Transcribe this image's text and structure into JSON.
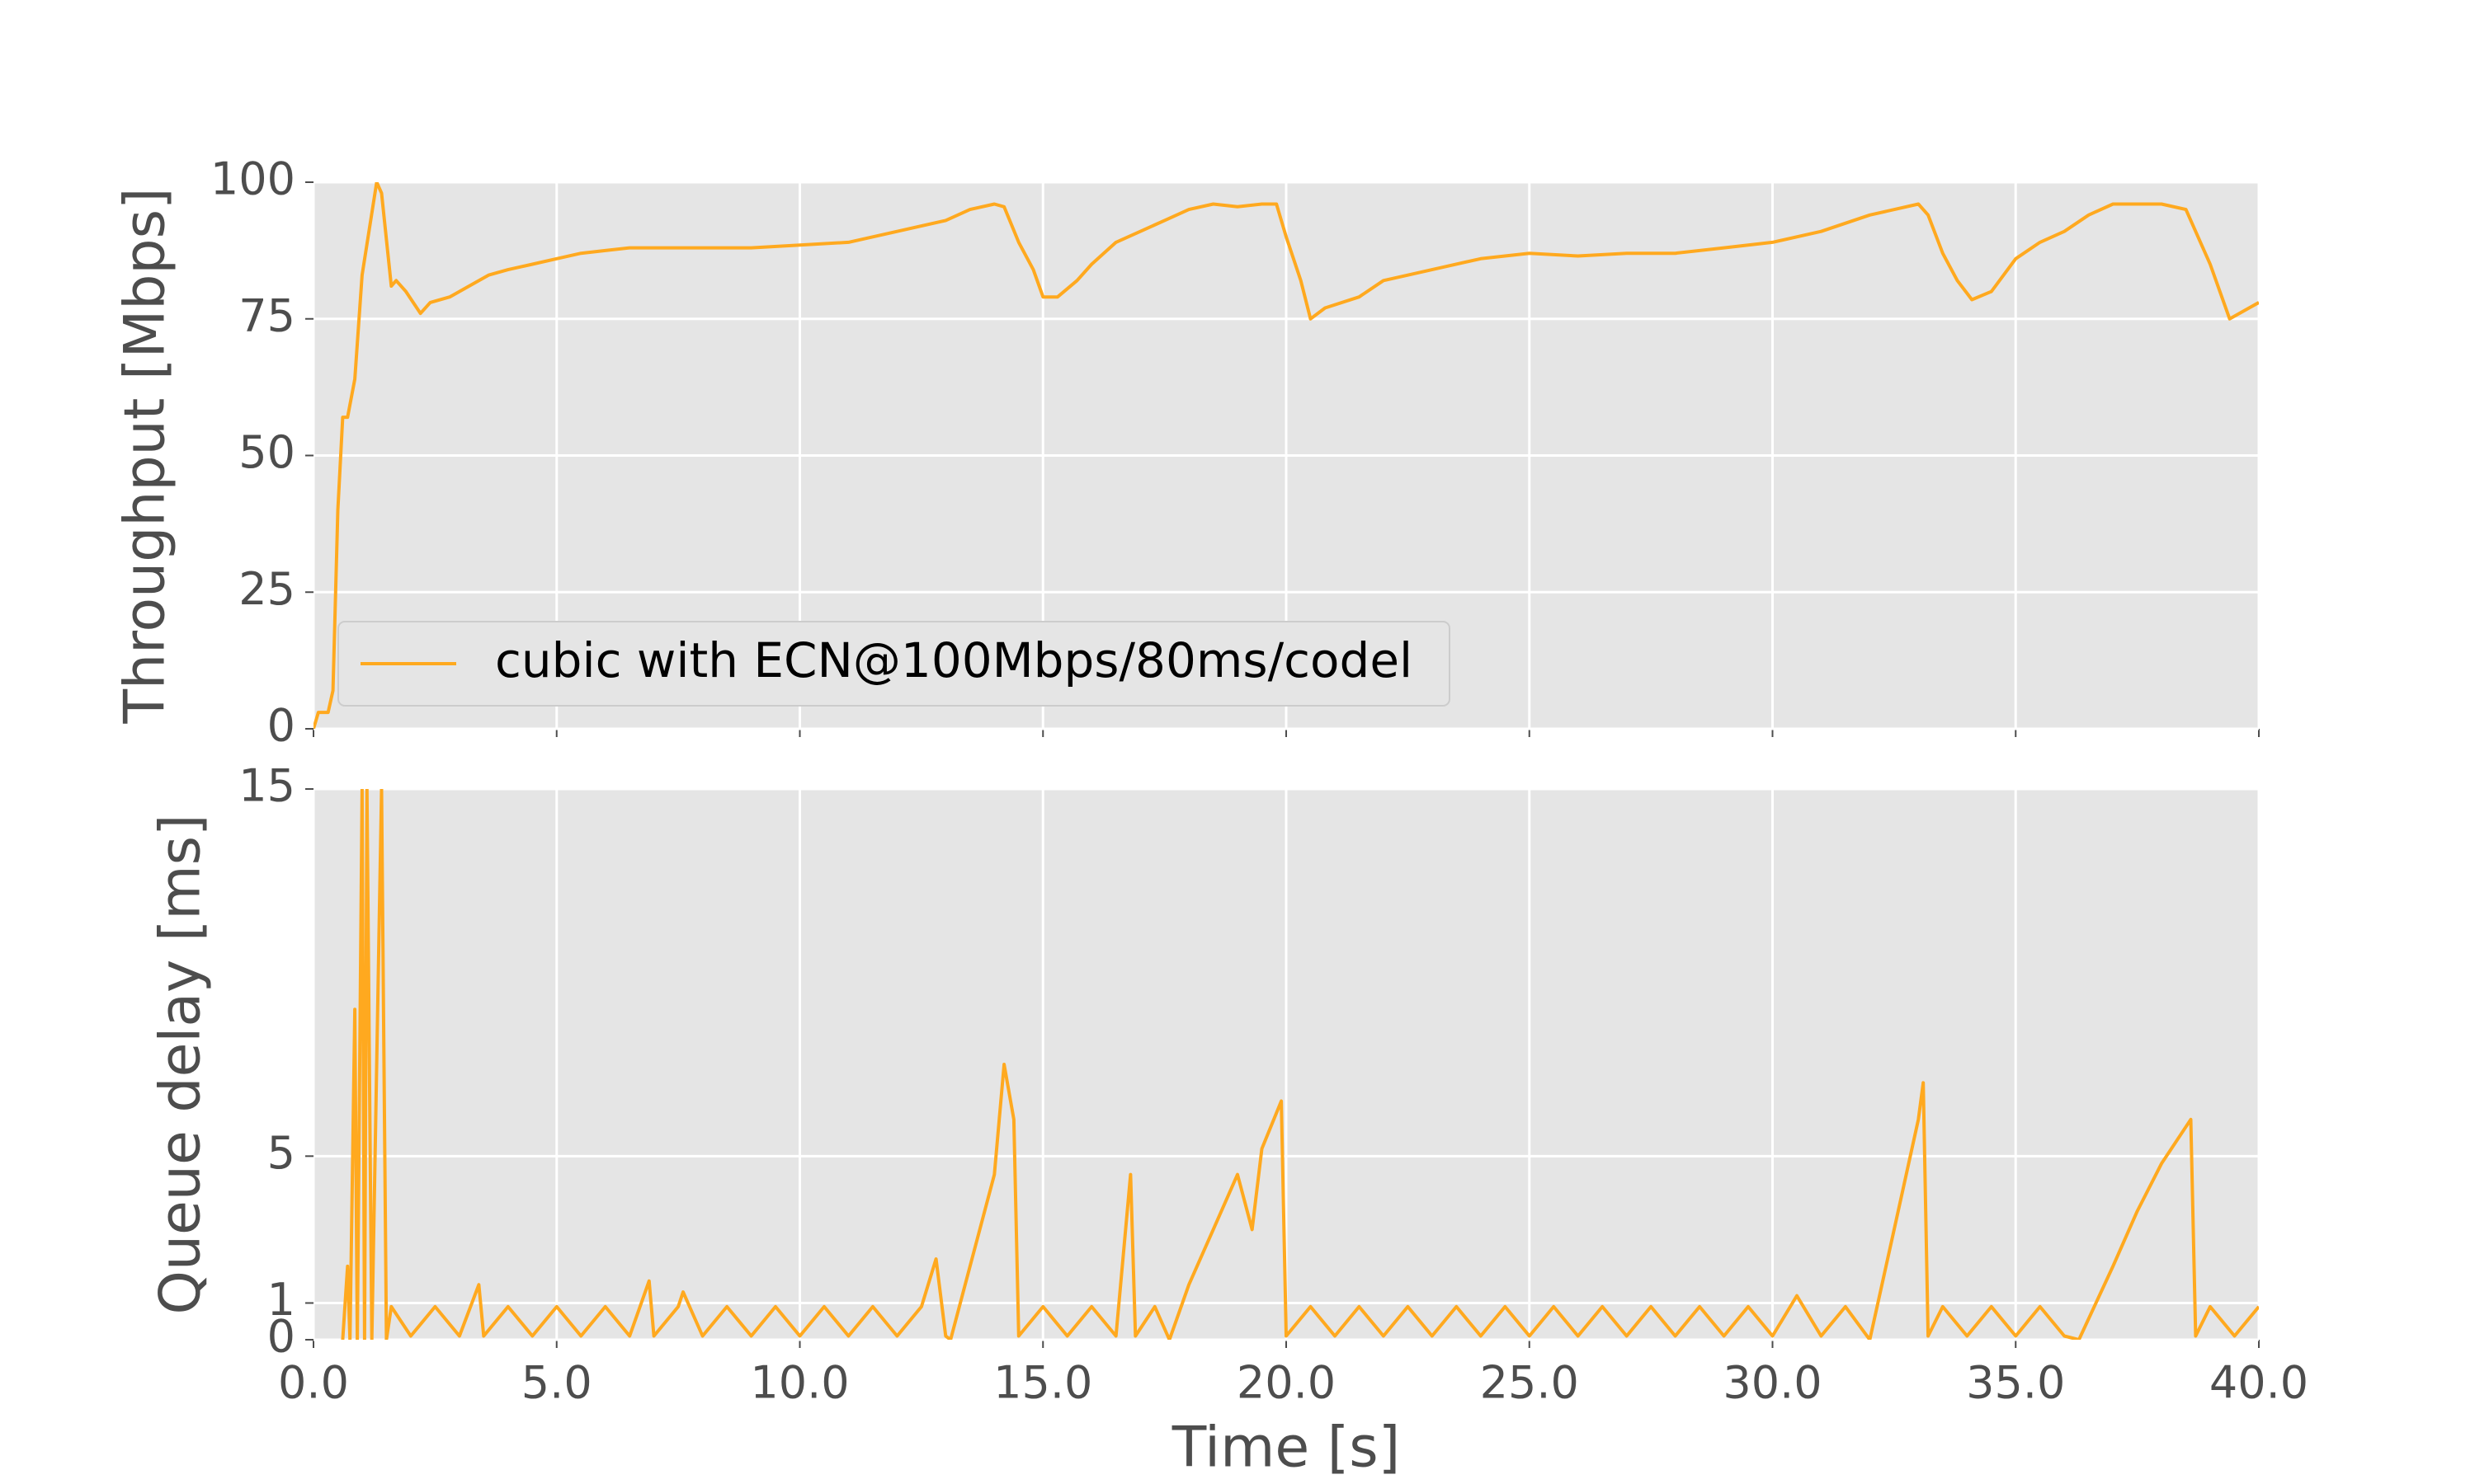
{
  "chart_data": [
    {
      "type": "line",
      "ylabel": "Throughput [Mbps]",
      "xlim": [
        0,
        40
      ],
      "xticks": [
        0,
        5,
        10,
        15,
        20,
        25,
        30,
        35,
        40
      ],
      "ylim": [
        0,
        100
      ],
      "yticks": [
        0,
        25,
        50,
        75,
        100
      ],
      "grid": true,
      "legend": "lower left",
      "x": [
        0,
        0.1,
        0.3,
        0.4,
        0.5,
        0.6,
        0.7,
        0.85,
        1.0,
        1.3,
        1.4,
        1.6,
        1.7,
        1.9,
        2.2,
        2.4,
        2.8,
        3.2,
        3.6,
        4,
        4.5,
        5,
        5.5,
        6,
        6.5,
        7,
        8,
        9,
        10,
        11,
        12,
        13,
        13.5,
        14,
        14.2,
        14.5,
        14.8,
        15,
        15.3,
        15.7,
        16,
        16.5,
        17,
        17.5,
        18,
        18.5,
        19,
        19.5,
        19.8,
        20,
        20.3,
        20.5,
        20.8,
        21.5,
        22,
        22.5,
        23,
        24,
        25,
        26,
        27,
        28,
        29,
        30,
        31,
        32,
        33,
        33.2,
        33.5,
        33.8,
        34.1,
        34.5,
        35,
        35.5,
        36,
        36.5,
        37,
        38,
        38.5,
        39,
        39.4,
        39.8,
        40
      ],
      "series": [
        {
          "name": "cubic with ECN@100Mbps/80ms/codel",
          "color": "#ffa91f",
          "values": [
            0,
            3,
            3,
            7,
            40,
            57,
            57,
            64,
            83,
            100,
            98,
            81,
            82,
            80,
            76,
            78,
            79,
            81,
            83,
            84,
            85,
            86,
            87,
            87.5,
            88,
            88,
            88,
            88,
            88.5,
            89,
            91,
            93,
            95,
            96,
            95.5,
            89,
            84,
            79,
            79,
            82,
            85,
            89,
            91,
            93,
            95,
            96,
            95.5,
            96,
            96,
            90,
            82,
            75,
            77,
            79,
            82,
            83,
            84,
            86,
            87,
            86.5,
            87,
            87,
            88,
            89,
            91,
            94,
            96,
            94,
            87,
            82,
            78.5,
            80,
            86,
            89,
            91,
            94,
            96,
            96,
            95,
            85,
            75,
            77,
            78
          ]
        }
      ]
    },
    {
      "type": "line",
      "ylabel": "Queue delay [ms]",
      "xlabel": "Time [s]",
      "xlim": [
        0,
        40
      ],
      "xticks": [
        {
          "value": 0,
          "label": "0.0"
        },
        {
          "value": 5,
          "label": "5.0"
        },
        {
          "value": 10,
          "label": "10.0"
        },
        {
          "value": 15,
          "label": "15.0"
        },
        {
          "value": 20,
          "label": "20.0"
        },
        {
          "value": 25,
          "label": "25.0"
        },
        {
          "value": 30,
          "label": "30.0"
        },
        {
          "value": 35,
          "label": "35.0"
        },
        {
          "value": 40,
          "label": "40.0"
        }
      ],
      "ylim": [
        0,
        15
      ],
      "yticks": [
        0,
        1,
        5,
        15
      ],
      "grid": true,
      "x": [
        0.6,
        0.7,
        0.75,
        0.85,
        0.9,
        1.0,
        1.05,
        1.1,
        1.2,
        1.4,
        1.5,
        1.6,
        2,
        2.5,
        3,
        3.4,
        3.5,
        4,
        4.5,
        5,
        5.5,
        6,
        6.5,
        6.9,
        7,
        7.5,
        7.6,
        8,
        8.5,
        9,
        9.5,
        10,
        10.5,
        11,
        11.5,
        12,
        12.5,
        12.8,
        13,
        13.1,
        13.5,
        14,
        14.2,
        14.4,
        14.5,
        15,
        15.5,
        16,
        16.5,
        16.8,
        16.9,
        17.3,
        17.6,
        18,
        18.5,
        19,
        19.3,
        19.5,
        19.9,
        20,
        20.5,
        21,
        21.5,
        22,
        22.5,
        23,
        23.5,
        24,
        24.5,
        25,
        25.5,
        26,
        26.5,
        27,
        27.5,
        28,
        28.5,
        29,
        29.5,
        30,
        30.5,
        31,
        31.5,
        32,
        32.5,
        33,
        33.1,
        33.2,
        33.5,
        34,
        34.5,
        35,
        35.5,
        36,
        36.3,
        37,
        37.5,
        38,
        38.6,
        38.7,
        39,
        39.5,
        40
      ],
      "series": [
        {
          "color": "#ffa91f",
          "values": [
            0,
            2,
            0,
            9,
            0,
            15,
            0,
            15,
            0,
            15,
            0,
            0.9,
            0.1,
            0.9,
            0.1,
            1.5,
            0.1,
            0.9,
            0.1,
            0.9,
            0.1,
            0.9,
            0.1,
            1.6,
            0.1,
            0.9,
            1.3,
            0.1,
            0.9,
            0.1,
            0.9,
            0.1,
            0.9,
            0.1,
            0.9,
            0.1,
            0.9,
            2.2,
            0.1,
            0,
            2,
            4.5,
            7.5,
            6,
            0.1,
            0.9,
            0.1,
            0.9,
            0.1,
            4.5,
            0.1,
            0.9,
            0,
            1.5,
            3,
            4.5,
            3,
            5.2,
            6.5,
            0.1,
            0.9,
            0.1,
            0.9,
            0.1,
            0.9,
            0.1,
            0.9,
            0.1,
            0.9,
            0.1,
            0.9,
            0.1,
            0.9,
            0.1,
            0.9,
            0.1,
            0.9,
            0.1,
            0.9,
            0.1,
            1.2,
            0.1,
            0.9,
            0,
            3,
            6,
            7,
            0.1,
            0.9,
            0.1,
            0.9,
            0.1,
            0.9,
            0.1,
            0,
            2,
            3.5,
            4.8,
            6,
            0.1,
            0.9,
            0.1,
            0.9
          ]
        }
      ]
    }
  ]
}
